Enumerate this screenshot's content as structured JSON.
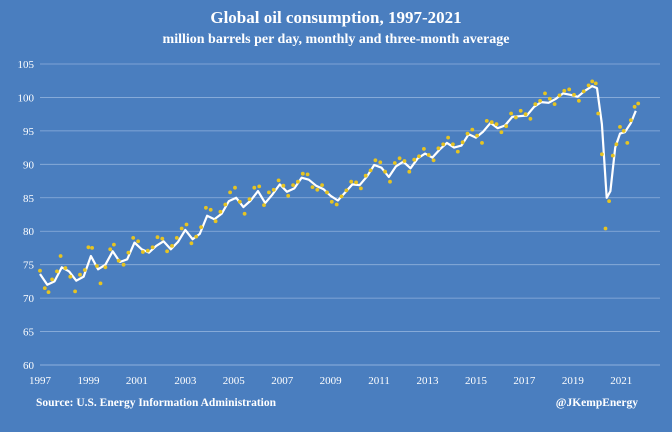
{
  "header": {
    "title": "Global oil consumption, 1997-2021",
    "subtitle": "million barrels per day, monthly and three-month average"
  },
  "footer": {
    "source": "Source: U.S. Energy Information Administration",
    "handle": "@JKempEnergy"
  },
  "colors": {
    "background": "#4a7ebf",
    "gridline": "#8fb0dc",
    "average_line": "#ffffff",
    "monthly_dots": "#e6c422",
    "text": "#ffffff"
  },
  "chart_data": {
    "type": "line",
    "title": "Global oil consumption, 1997-2021",
    "subtitle": "million barrels per day, monthly and three-month average",
    "xlabel": "",
    "ylabel": "",
    "xlim": [
      1997,
      2022.6
    ],
    "ylim": [
      60,
      105
    ],
    "x_ticks": [
      1997,
      1999,
      2001,
      2003,
      2005,
      2007,
      2009,
      2011,
      2013,
      2015,
      2017,
      2019,
      2021
    ],
    "y_ticks": [
      60,
      65,
      70,
      75,
      80,
      85,
      90,
      95,
      100,
      105
    ],
    "grid": "horizontal",
    "series": [
      {
        "style": "line",
        "color": "#ffffff",
        "points": [
          [
            1997.0,
            73.6
          ],
          [
            1997.3,
            72.0
          ],
          [
            1997.6,
            72.5
          ],
          [
            1997.9,
            74.6
          ],
          [
            1998.2,
            74.0
          ],
          [
            1998.5,
            72.6
          ],
          [
            1998.8,
            73.2
          ],
          [
            1999.1,
            76.3
          ],
          [
            1999.4,
            74.3
          ],
          [
            1999.7,
            75.0
          ],
          [
            2000.0,
            77.0
          ],
          [
            2000.3,
            75.4
          ],
          [
            2000.6,
            75.8
          ],
          [
            2000.9,
            78.3
          ],
          [
            2001.2,
            77.3
          ],
          [
            2001.5,
            76.8
          ],
          [
            2001.8,
            77.8
          ],
          [
            2002.1,
            78.5
          ],
          [
            2002.4,
            77.3
          ],
          [
            2002.7,
            78.4
          ],
          [
            2003.0,
            80.2
          ],
          [
            2003.3,
            78.8
          ],
          [
            2003.6,
            79.6
          ],
          [
            2003.9,
            82.3
          ],
          [
            2004.2,
            81.8
          ],
          [
            2004.5,
            82.6
          ],
          [
            2004.8,
            84.5
          ],
          [
            2005.1,
            85.0
          ],
          [
            2005.4,
            83.6
          ],
          [
            2005.7,
            84.6
          ],
          [
            2006.0,
            86.0
          ],
          [
            2006.3,
            84.2
          ],
          [
            2006.6,
            85.5
          ],
          [
            2006.9,
            87.0
          ],
          [
            2007.2,
            85.9
          ],
          [
            2007.5,
            86.4
          ],
          [
            2007.8,
            88.0
          ],
          [
            2008.1,
            87.7
          ],
          [
            2008.4,
            86.8
          ],
          [
            2008.7,
            86.3
          ],
          [
            2009.0,
            85.3
          ],
          [
            2009.3,
            84.6
          ],
          [
            2009.6,
            85.8
          ],
          [
            2009.9,
            87.0
          ],
          [
            2010.2,
            86.9
          ],
          [
            2010.5,
            88.2
          ],
          [
            2010.8,
            89.9
          ],
          [
            2011.1,
            89.5
          ],
          [
            2011.4,
            88.1
          ],
          [
            2011.7,
            89.7
          ],
          [
            2012.0,
            90.4
          ],
          [
            2012.3,
            89.4
          ],
          [
            2012.6,
            90.9
          ],
          [
            2012.9,
            91.6
          ],
          [
            2013.2,
            91.0
          ],
          [
            2013.5,
            92.2
          ],
          [
            2013.8,
            93.2
          ],
          [
            2014.1,
            92.5
          ],
          [
            2014.4,
            92.8
          ],
          [
            2014.7,
            94.5
          ],
          [
            2015.0,
            94.0
          ],
          [
            2015.3,
            94.9
          ],
          [
            2015.6,
            96.2
          ],
          [
            2015.9,
            95.4
          ],
          [
            2016.2,
            95.8
          ],
          [
            2016.5,
            97.1
          ],
          [
            2016.8,
            97.2
          ],
          [
            2017.1,
            97.3
          ],
          [
            2017.4,
            98.6
          ],
          [
            2017.7,
            99.3
          ],
          [
            2018.0,
            99.2
          ],
          [
            2018.3,
            99.8
          ],
          [
            2018.6,
            100.6
          ],
          [
            2018.9,
            100.4
          ],
          [
            2019.2,
            100.1
          ],
          [
            2019.5,
            101.0
          ],
          [
            2019.8,
            101.7
          ],
          [
            2020.0,
            101.4
          ],
          [
            2020.2,
            96.0
          ],
          [
            2020.4,
            85.0
          ],
          [
            2020.55,
            86.0
          ],
          [
            2020.75,
            92.5
          ],
          [
            2020.95,
            94.6
          ],
          [
            2021.15,
            94.8
          ],
          [
            2021.4,
            96.2
          ],
          [
            2021.6,
            98.0
          ]
        ]
      },
      {
        "style": "dots",
        "color": "#e6c422",
        "points": [
          [
            1997.0,
            74.1
          ],
          [
            1997.2,
            71.5
          ],
          [
            1997.35,
            70.9
          ],
          [
            1997.5,
            72.8
          ],
          [
            1997.7,
            74.0
          ],
          [
            1997.85,
            76.3
          ],
          [
            1998.05,
            74.5
          ],
          [
            1998.25,
            73.2
          ],
          [
            1998.45,
            71.0
          ],
          [
            1998.65,
            73.5
          ],
          [
            1998.85,
            74.2
          ],
          [
            1999.0,
            77.6
          ],
          [
            1999.15,
            77.5
          ],
          [
            1999.35,
            74.8
          ],
          [
            1999.5,
            72.2
          ],
          [
            1999.7,
            74.6
          ],
          [
            1999.9,
            77.3
          ],
          [
            2000.05,
            78.0
          ],
          [
            2000.25,
            75.6
          ],
          [
            2000.45,
            75.0
          ],
          [
            2000.65,
            76.8
          ],
          [
            2000.85,
            79.0
          ],
          [
            2001.05,
            78.5
          ],
          [
            2001.25,
            76.9
          ],
          [
            2001.45,
            77.1
          ],
          [
            2001.65,
            77.6
          ],
          [
            2001.85,
            79.1
          ],
          [
            2002.05,
            78.9
          ],
          [
            2002.25,
            77.0
          ],
          [
            2002.45,
            77.8
          ],
          [
            2002.65,
            79.0
          ],
          [
            2002.85,
            80.4
          ],
          [
            2003.05,
            81.0
          ],
          [
            2003.25,
            78.2
          ],
          [
            2003.45,
            79.2
          ],
          [
            2003.65,
            80.6
          ],
          [
            2003.85,
            83.5
          ],
          [
            2004.05,
            83.2
          ],
          [
            2004.25,
            81.5
          ],
          [
            2004.45,
            82.9
          ],
          [
            2004.65,
            84.0
          ],
          [
            2004.85,
            85.8
          ],
          [
            2005.05,
            86.5
          ],
          [
            2005.25,
            84.4
          ],
          [
            2005.45,
            82.6
          ],
          [
            2005.65,
            84.8
          ],
          [
            2005.85,
            86.5
          ],
          [
            2006.05,
            86.7
          ],
          [
            2006.25,
            83.9
          ],
          [
            2006.45,
            85.8
          ],
          [
            2006.65,
            86.2
          ],
          [
            2006.85,
            87.6
          ],
          [
            2007.05,
            86.8
          ],
          [
            2007.25,
            85.3
          ],
          [
            2007.45,
            86.9
          ],
          [
            2007.65,
            87.4
          ],
          [
            2007.85,
            88.6
          ],
          [
            2008.05,
            88.5
          ],
          [
            2008.25,
            86.6
          ],
          [
            2008.45,
            86.2
          ],
          [
            2008.65,
            86.9
          ],
          [
            2008.85,
            85.8
          ],
          [
            2009.05,
            84.4
          ],
          [
            2009.25,
            84.0
          ],
          [
            2009.45,
            85.2
          ],
          [
            2009.65,
            86.1
          ],
          [
            2009.85,
            87.4
          ],
          [
            2010.05,
            87.3
          ],
          [
            2010.25,
            86.4
          ],
          [
            2010.45,
            88.3
          ],
          [
            2010.65,
            89.1
          ],
          [
            2010.85,
            90.6
          ],
          [
            2011.05,
            90.3
          ],
          [
            2011.25,
            88.9
          ],
          [
            2011.45,
            87.4
          ],
          [
            2011.65,
            90.2
          ],
          [
            2011.85,
            90.9
          ],
          [
            2012.05,
            90.5
          ],
          [
            2012.25,
            88.9
          ],
          [
            2012.45,
            90.7
          ],
          [
            2012.65,
            91.2
          ],
          [
            2012.85,
            92.3
          ],
          [
            2013.05,
            91.4
          ],
          [
            2013.25,
            90.6
          ],
          [
            2013.45,
            92.4
          ],
          [
            2013.65,
            93.0
          ],
          [
            2013.85,
            94.0
          ],
          [
            2014.05,
            93.0
          ],
          [
            2014.25,
            91.9
          ],
          [
            2014.45,
            93.3
          ],
          [
            2014.65,
            94.6
          ],
          [
            2014.85,
            95.2
          ],
          [
            2015.05,
            94.3
          ],
          [
            2015.25,
            93.2
          ],
          [
            2015.45,
            96.5
          ],
          [
            2015.65,
            96.3
          ],
          [
            2015.85,
            96.0
          ],
          [
            2016.05,
            94.8
          ],
          [
            2016.25,
            95.7
          ],
          [
            2016.45,
            97.6
          ],
          [
            2016.65,
            97.0
          ],
          [
            2016.85,
            98.0
          ],
          [
            2017.05,
            97.5
          ],
          [
            2017.25,
            96.8
          ],
          [
            2017.45,
            99.0
          ],
          [
            2017.65,
            99.5
          ],
          [
            2017.85,
            100.6
          ],
          [
            2018.05,
            99.8
          ],
          [
            2018.25,
            99.0
          ],
          [
            2018.45,
            100.3
          ],
          [
            2018.65,
            101.0
          ],
          [
            2018.85,
            101.2
          ],
          [
            2019.05,
            100.4
          ],
          [
            2019.25,
            99.5
          ],
          [
            2019.45,
            100.9
          ],
          [
            2019.65,
            101.8
          ],
          [
            2019.8,
            102.4
          ],
          [
            2019.95,
            102.1
          ],
          [
            2020.05,
            97.6
          ],
          [
            2020.2,
            91.5
          ],
          [
            2020.35,
            80.4
          ],
          [
            2020.5,
            84.5
          ],
          [
            2020.65,
            91.3
          ],
          [
            2020.8,
            93.0
          ],
          [
            2020.95,
            95.6
          ],
          [
            2021.1,
            95.0
          ],
          [
            2021.25,
            93.2
          ],
          [
            2021.4,
            96.6
          ],
          [
            2021.55,
            98.6
          ],
          [
            2021.7,
            99.1
          ]
        ]
      }
    ]
  }
}
